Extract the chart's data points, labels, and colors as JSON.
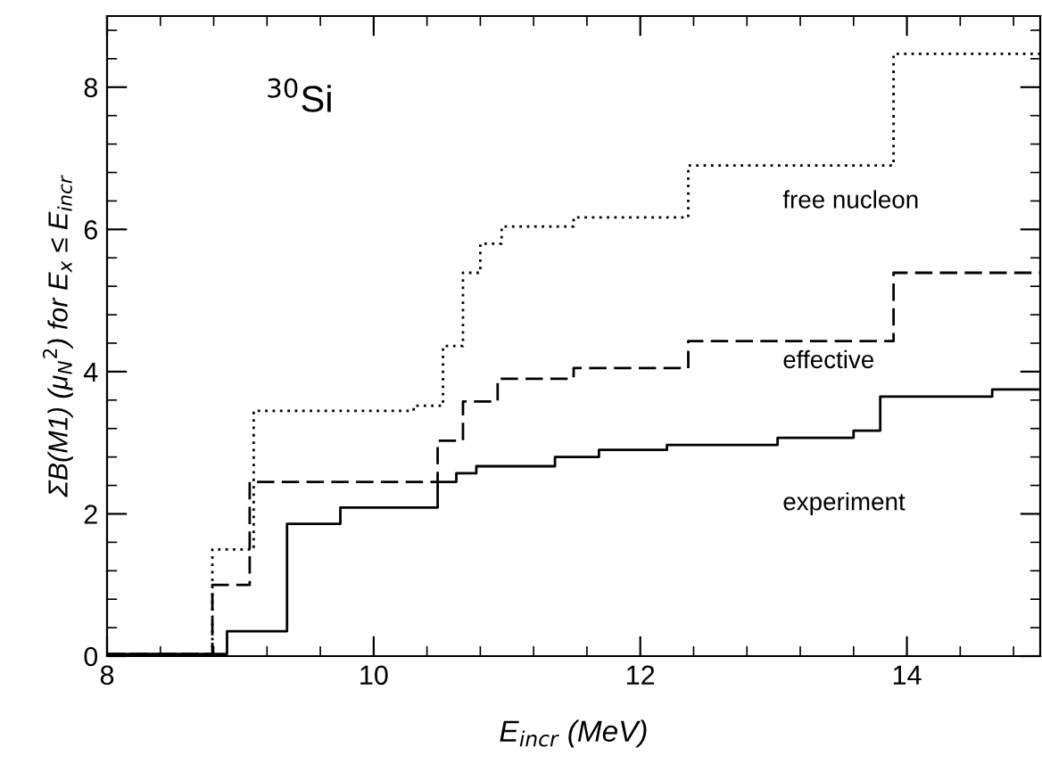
{
  "chart_data": {
    "type": "step",
    "xlabel": "E$_{incr}$ (MeV)",
    "ylabel": "ΣB(M1) (μ$_{N}$$^{2}$) for E$_{x}$ ≤ E$_{incr}$",
    "annotations": [
      "$^{30}$Si"
    ],
    "xlim": [
      8,
      15
    ],
    "ylim": [
      0,
      9
    ],
    "xticks": [
      8,
      10,
      12,
      14
    ],
    "yticks": [
      0,
      2,
      4,
      6,
      8
    ],
    "series": [
      {
        "name": "free nucleon",
        "color": "#000000",
        "line_style": "dotted",
        "x": [
          8,
          8.79,
          9.1,
          10.3,
          10.52,
          10.67,
          10.8,
          10.96,
          11.5,
          12.36,
          13.9,
          15
        ],
        "values": [
          0.03,
          1.5,
          3.45,
          3.52,
          4.36,
          5.39,
          5.8,
          6.04,
          6.17,
          6.9,
          8.47,
          8.47
        ]
      },
      {
        "name": "effective",
        "color": "#000000",
        "line_style": "dashed",
        "x": [
          8,
          8.79,
          9.07,
          10.48,
          10.67,
          10.93,
          11.5,
          12.36,
          13.9,
          15
        ],
        "values": [
          0.03,
          1.0,
          2.45,
          3.03,
          3.58,
          3.9,
          4.05,
          4.43,
          5.39,
          5.39
        ]
      },
      {
        "name": "experiment",
        "color": "#000000",
        "line_style": "solid",
        "x": [
          8,
          8.9,
          9.35,
          9.75,
          10.48,
          10.62,
          10.77,
          11.36,
          11.69,
          12.2,
          13.03,
          13.6,
          13.8,
          14.64,
          15
        ],
        "values": [
          0.03,
          0.35,
          1.86,
          2.09,
          2.45,
          2.57,
          2.67,
          2.8,
          2.9,
          2.97,
          3.07,
          3.17,
          3.65,
          3.75,
          3.75
        ]
      }
    ]
  }
}
